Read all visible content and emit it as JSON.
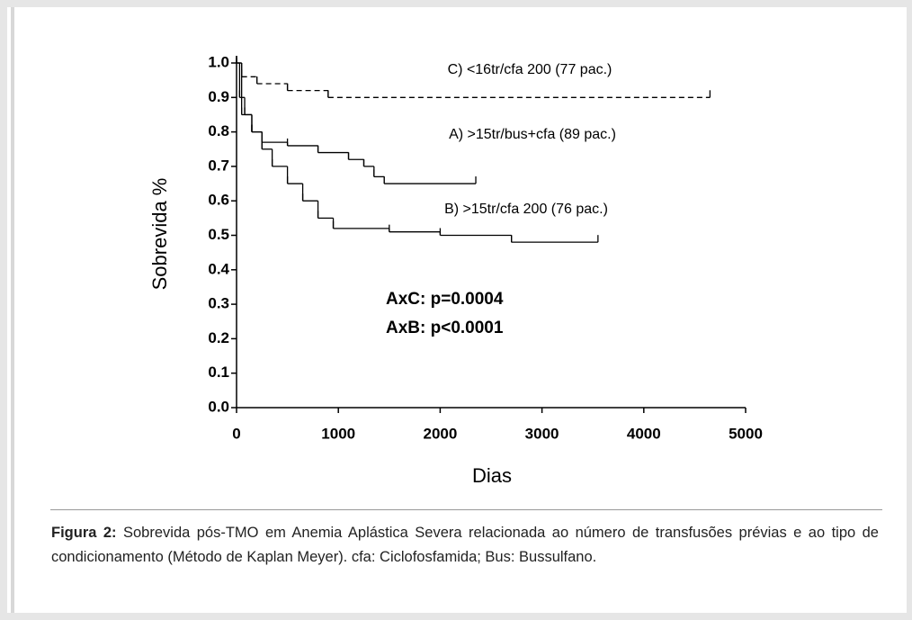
{
  "chart_data": {
    "type": "step",
    "ylabel": "Sobrevida %",
    "xlabel": "Dias",
    "xlim": [
      0,
      5000
    ],
    "xticks": [
      0,
      1000,
      2000,
      3000,
      4000,
      5000
    ],
    "ylim": [
      0,
      1
    ],
    "yticks": [
      {
        "value": 0,
        "label": "0.0"
      },
      0.1,
      0.2,
      0.3,
      0.4,
      0.5,
      0.6,
      0.7,
      0.8,
      0.9,
      {
        "value": 1,
        "label": "1.0"
      }
    ],
    "annotations": [
      "AxC: p=0.0004",
      "AxB: p<0.0001"
    ],
    "series": [
      {
        "name": "C) <16tr/cfa 200 (77 pac.)",
        "color": "#000000",
        "dashed": true,
        "x": [
          0,
          50,
          200,
          500,
          900,
          4650
        ],
        "values": [
          1,
          0.96,
          0.94,
          0.92,
          0.9,
          0.9
        ]
      },
      {
        "name": "A) >15tr/bus+cfa (89 pac.)",
        "color": "#000000",
        "dashed": false,
        "x": [
          0,
          30,
          80,
          150,
          250,
          500,
          800,
          1100,
          1250,
          1350,
          1450,
          2350
        ],
        "values": [
          1,
          0.9,
          0.85,
          0.8,
          0.77,
          0.76,
          0.74,
          0.72,
          0.7,
          0.67,
          0.65,
          0.65
        ]
      },
      {
        "name": "B) >15tr/cfa 200 (76 pac.)",
        "color": "#000000",
        "dashed": false,
        "x": [
          0,
          50,
          150,
          250,
          350,
          500,
          650,
          800,
          950,
          1500,
          2000,
          2700,
          3550
        ],
        "values": [
          1,
          0.85,
          0.8,
          0.75,
          0.7,
          0.65,
          0.6,
          0.55,
          0.52,
          0.51,
          0.5,
          0.48,
          0.48
        ]
      }
    ]
  },
  "caption": {
    "label": "Figura 2:",
    "text": "Sobrevida pós-TMO em Anemia Aplástica Severa relacionada ao número de transfusões prévias e ao tipo de condicionamento (Método de Kaplan Meyer). cfa: Ciclofosfamida; Bus: Bussulfano."
  }
}
